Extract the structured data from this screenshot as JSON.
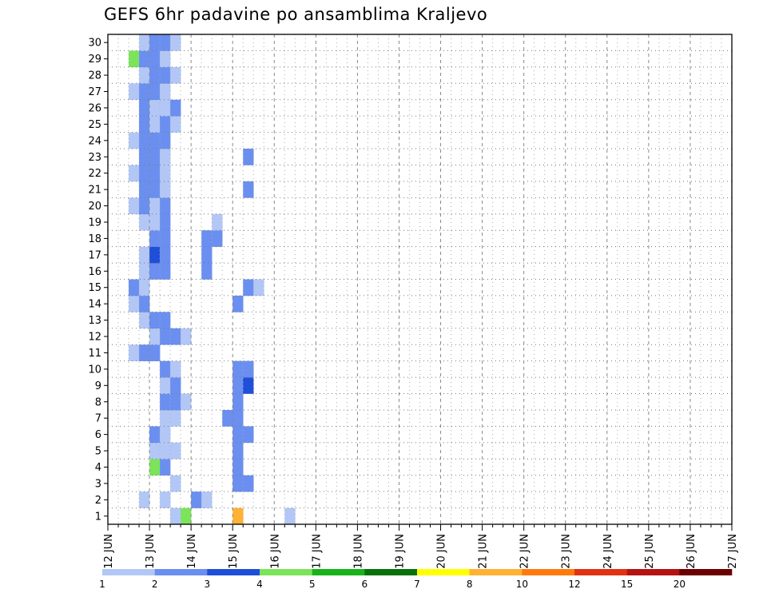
{
  "title": "GEFS 6hr padavine po ansamblima Kraljevo",
  "chart_data": {
    "type": "heatmap",
    "title": "GEFS 6hr padavine po ansamblima Kraljevo",
    "x_tick_labels": [
      "12 JUN",
      "13 JUN",
      "14 JUN",
      "15 JUN",
      "16 JUN",
      "17 JUN",
      "18 JUN",
      "19 JUN",
      "20 JUN",
      "21 JUN",
      "22 JUN",
      "23 JUN",
      "24 JUN",
      "25 JUN",
      "26 JUN",
      "27 JUN"
    ],
    "y_tick_labels": [
      "1",
      "2",
      "3",
      "4",
      "5",
      "6",
      "7",
      "8",
      "9",
      "10",
      "11",
      "12",
      "13",
      "14",
      "15",
      "16",
      "17",
      "18",
      "19",
      "20",
      "21",
      "22",
      "23",
      "24",
      "25",
      "26",
      "27",
      "28",
      "29",
      "30"
    ],
    "xlim": [
      "12 JUN 00Z",
      "27 JUN 00Z"
    ],
    "ylim": [
      0,
      30
    ],
    "step_hours": 6,
    "grid": true,
    "legend": {
      "placement": "bottom",
      "bins": [
        {
          "label": "1",
          "color": "#b3c7f7"
        },
        {
          "label": "2",
          "color": "#6a8ff0"
        },
        {
          "label": "3",
          "color": "#1f4ed8"
        },
        {
          "label": "4",
          "color": "#7be45a"
        },
        {
          "label": "5",
          "color": "#19b319"
        },
        {
          "label": "6",
          "color": "#0a700a"
        },
        {
          "label": "7",
          "color": "#ffff00"
        },
        {
          "label": "8",
          "color": "#ffb233"
        },
        {
          "label": "10",
          "color": "#ff7a0d"
        },
        {
          "label": "12",
          "color": "#e03214"
        },
        {
          "label": "15",
          "color": "#b51212"
        },
        {
          "label": "20",
          "color": "#6b0000"
        }
      ]
    },
    "cells": [
      {
        "member": 1,
        "step": 6,
        "bin": 1
      },
      {
        "member": 1,
        "step": 7,
        "bin": 4
      },
      {
        "member": 1,
        "step": 12,
        "bin": 8
      },
      {
        "member": 1,
        "step": 17,
        "bin": 1
      },
      {
        "member": 2,
        "step": 3,
        "bin": 1
      },
      {
        "member": 2,
        "step": 5,
        "bin": 1
      },
      {
        "member": 2,
        "step": 8,
        "bin": 2
      },
      {
        "member": 2,
        "step": 9,
        "bin": 1
      },
      {
        "member": 3,
        "step": 6,
        "bin": 1
      },
      {
        "member": 3,
        "step": 12,
        "bin": 2
      },
      {
        "member": 3,
        "step": 13,
        "bin": 2
      },
      {
        "member": 4,
        "step": 4,
        "bin": 4
      },
      {
        "member": 4,
        "step": 5,
        "bin": 2
      },
      {
        "member": 4,
        "step": 12,
        "bin": 2
      },
      {
        "member": 5,
        "step": 4,
        "bin": 1
      },
      {
        "member": 5,
        "step": 5,
        "bin": 1
      },
      {
        "member": 5,
        "step": 6,
        "bin": 1
      },
      {
        "member": 5,
        "step": 12,
        "bin": 2
      },
      {
        "member": 6,
        "step": 4,
        "bin": 2
      },
      {
        "member": 6,
        "step": 5,
        "bin": 1
      },
      {
        "member": 6,
        "step": 12,
        "bin": 2
      },
      {
        "member": 6,
        "step": 13,
        "bin": 2
      },
      {
        "member": 7,
        "step": 5,
        "bin": 1
      },
      {
        "member": 7,
        "step": 6,
        "bin": 1
      },
      {
        "member": 7,
        "step": 11,
        "bin": 2
      },
      {
        "member": 7,
        "step": 12,
        "bin": 2
      },
      {
        "member": 8,
        "step": 5,
        "bin": 2
      },
      {
        "member": 8,
        "step": 6,
        "bin": 2
      },
      {
        "member": 8,
        "step": 7,
        "bin": 1
      },
      {
        "member": 8,
        "step": 12,
        "bin": 2
      },
      {
        "member": 9,
        "step": 5,
        "bin": 1
      },
      {
        "member": 9,
        "step": 6,
        "bin": 2
      },
      {
        "member": 9,
        "step": 12,
        "bin": 2
      },
      {
        "member": 9,
        "step": 13,
        "bin": 3
      },
      {
        "member": 10,
        "step": 5,
        "bin": 2
      },
      {
        "member": 10,
        "step": 6,
        "bin": 1
      },
      {
        "member": 10,
        "step": 12,
        "bin": 2
      },
      {
        "member": 10,
        "step": 13,
        "bin": 2
      },
      {
        "member": 11,
        "step": 2,
        "bin": 1
      },
      {
        "member": 11,
        "step": 3,
        "bin": 2
      },
      {
        "member": 11,
        "step": 4,
        "bin": 2
      },
      {
        "member": 12,
        "step": 4,
        "bin": 1
      },
      {
        "member": 12,
        "step": 5,
        "bin": 2
      },
      {
        "member": 12,
        "step": 6,
        "bin": 2
      },
      {
        "member": 12,
        "step": 7,
        "bin": 1
      },
      {
        "member": 13,
        "step": 3,
        "bin": 1
      },
      {
        "member": 13,
        "step": 4,
        "bin": 2
      },
      {
        "member": 13,
        "step": 5,
        "bin": 2
      },
      {
        "member": 14,
        "step": 2,
        "bin": 1
      },
      {
        "member": 14,
        "step": 3,
        "bin": 2
      },
      {
        "member": 14,
        "step": 12,
        "bin": 2
      },
      {
        "member": 15,
        "step": 2,
        "bin": 2
      },
      {
        "member": 15,
        "step": 3,
        "bin": 1
      },
      {
        "member": 15,
        "step": 13,
        "bin": 2
      },
      {
        "member": 15,
        "step": 14,
        "bin": 1
      },
      {
        "member": 16,
        "step": 3,
        "bin": 1
      },
      {
        "member": 16,
        "step": 4,
        "bin": 2
      },
      {
        "member": 16,
        "step": 5,
        "bin": 2
      },
      {
        "member": 16,
        "step": 9,
        "bin": 2
      },
      {
        "member": 17,
        "step": 3,
        "bin": 1
      },
      {
        "member": 17,
        "step": 4,
        "bin": 3
      },
      {
        "member": 17,
        "step": 5,
        "bin": 2
      },
      {
        "member": 17,
        "step": 9,
        "bin": 2
      },
      {
        "member": 18,
        "step": 4,
        "bin": 2
      },
      {
        "member": 18,
        "step": 5,
        "bin": 2
      },
      {
        "member": 18,
        "step": 9,
        "bin": 2
      },
      {
        "member": 18,
        "step": 10,
        "bin": 2
      },
      {
        "member": 19,
        "step": 3,
        "bin": 1
      },
      {
        "member": 19,
        "step": 4,
        "bin": 1
      },
      {
        "member": 19,
        "step": 5,
        "bin": 2
      },
      {
        "member": 19,
        "step": 10,
        "bin": 1
      },
      {
        "member": 20,
        "step": 2,
        "bin": 1
      },
      {
        "member": 20,
        "step": 3,
        "bin": 2
      },
      {
        "member": 20,
        "step": 4,
        "bin": 1
      },
      {
        "member": 20,
        "step": 5,
        "bin": 2
      },
      {
        "member": 21,
        "step": 3,
        "bin": 2
      },
      {
        "member": 21,
        "step": 4,
        "bin": 2
      },
      {
        "member": 21,
        "step": 5,
        "bin": 1
      },
      {
        "member": 21,
        "step": 13,
        "bin": 2
      },
      {
        "member": 22,
        "step": 2,
        "bin": 1
      },
      {
        "member": 22,
        "step": 3,
        "bin": 2
      },
      {
        "member": 22,
        "step": 4,
        "bin": 2
      },
      {
        "member": 22,
        "step": 5,
        "bin": 1
      },
      {
        "member": 23,
        "step": 3,
        "bin": 2
      },
      {
        "member": 23,
        "step": 4,
        "bin": 2
      },
      {
        "member": 23,
        "step": 5,
        "bin": 1
      },
      {
        "member": 23,
        "step": 13,
        "bin": 2
      },
      {
        "member": 24,
        "step": 2,
        "bin": 1
      },
      {
        "member": 24,
        "step": 3,
        "bin": 2
      },
      {
        "member": 24,
        "step": 4,
        "bin": 2
      },
      {
        "member": 24,
        "step": 5,
        "bin": 2
      },
      {
        "member": 25,
        "step": 3,
        "bin": 2
      },
      {
        "member": 25,
        "step": 4,
        "bin": 1
      },
      {
        "member": 25,
        "step": 5,
        "bin": 2
      },
      {
        "member": 25,
        "step": 6,
        "bin": 1
      },
      {
        "member": 26,
        "step": 3,
        "bin": 2
      },
      {
        "member": 26,
        "step": 4,
        "bin": 1
      },
      {
        "member": 26,
        "step": 5,
        "bin": 1
      },
      {
        "member": 26,
        "step": 6,
        "bin": 2
      },
      {
        "member": 27,
        "step": 2,
        "bin": 1
      },
      {
        "member": 27,
        "step": 3,
        "bin": 2
      },
      {
        "member": 27,
        "step": 4,
        "bin": 2
      },
      {
        "member": 27,
        "step": 5,
        "bin": 1
      },
      {
        "member": 28,
        "step": 3,
        "bin": 1
      },
      {
        "member": 28,
        "step": 4,
        "bin": 2
      },
      {
        "member": 28,
        "step": 5,
        "bin": 2
      },
      {
        "member": 28,
        "step": 6,
        "bin": 1
      },
      {
        "member": 29,
        "step": 2,
        "bin": 4
      },
      {
        "member": 29,
        "step": 3,
        "bin": 2
      },
      {
        "member": 29,
        "step": 4,
        "bin": 2
      },
      {
        "member": 29,
        "step": 5,
        "bin": 1
      },
      {
        "member": 30,
        "step": 3,
        "bin": 1
      },
      {
        "member": 30,
        "step": 4,
        "bin": 2
      },
      {
        "member": 30,
        "step": 5,
        "bin": 2
      },
      {
        "member": 30,
        "step": 6,
        "bin": 1
      }
    ]
  }
}
